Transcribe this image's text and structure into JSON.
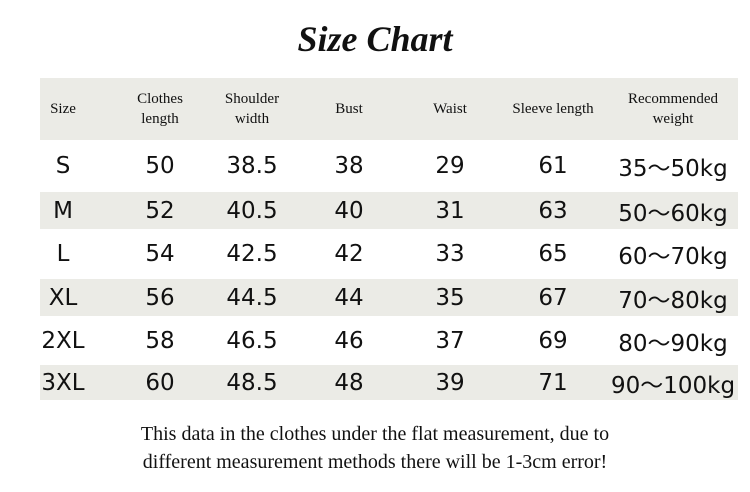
{
  "title": "Size Chart",
  "headers": [
    "Size",
    "Clothes\nlength",
    "Shoulder\nwidth",
    "Bust",
    "Waist",
    "Sleeve length",
    "Recommended\nweight"
  ],
  "rows": [
    [
      "S",
      "50",
      "38.5",
      "38",
      "29",
      "61",
      "35～50kg"
    ],
    [
      "M",
      "52",
      "40.5",
      "40",
      "31",
      "63",
      "50～60kg"
    ],
    [
      "L",
      "54",
      "42.5",
      "42",
      "33",
      "65",
      "60～70kg"
    ],
    [
      "XL",
      "56",
      "44.5",
      "44",
      "35",
      "67",
      "70～80kg"
    ],
    [
      "2XL",
      "58",
      "46.5",
      "46",
      "37",
      "69",
      "80～90kg"
    ],
    [
      "3XL",
      "60",
      "48.5",
      "48",
      "39",
      "71",
      "90～100kg"
    ]
  ],
  "note": [
    "This data in the clothes under the flat measurement, due to",
    "different measurement methods there will be 1-3cm error!"
  ],
  "colors": {
    "band": "#ebebe6"
  }
}
